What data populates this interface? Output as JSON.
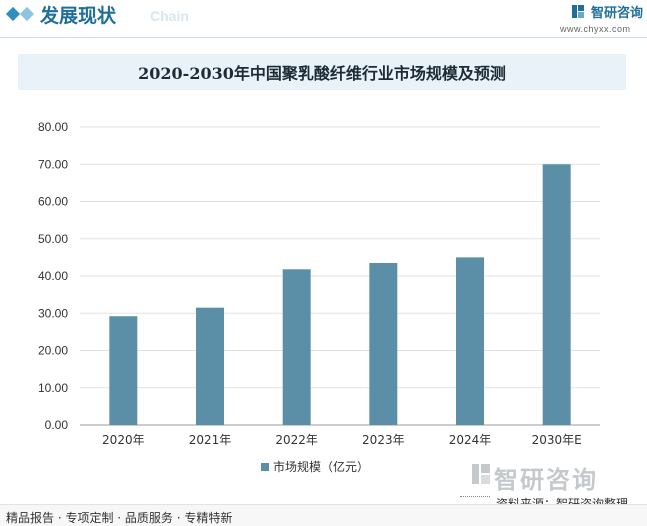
{
  "header": {
    "section_title": "发展现状",
    "section_sub": "Chain",
    "brand_name": "智研咨询",
    "brand_url": "www.chyxx.com"
  },
  "colors": {
    "accent": "#1f6f9a",
    "bar": "#5b8fa8",
    "title_band": "#e8f2f8"
  },
  "chart_data": {
    "type": "bar",
    "title": "2020-2030年中国聚乳酸纤维行业市场规模及预测",
    "categories": [
      "2020年",
      "2021年",
      "2022年",
      "2023年",
      "2024年",
      "2030年E"
    ],
    "series": [
      {
        "name": "市场规模（亿元）",
        "values": [
          29.2,
          31.5,
          41.8,
          43.5,
          45.0,
          70.0
        ]
      }
    ],
    "ylim": [
      0,
      80
    ],
    "yticks": [
      "0.00",
      "10.00",
      "20.00",
      "30.00",
      "40.00",
      "50.00",
      "60.00",
      "70.00",
      "80.00"
    ],
    "grid": true,
    "legend_position": "bottom"
  },
  "watermark": {
    "text": "智研咨询"
  },
  "source": "资料来源：智研咨询整理",
  "footer": {
    "text": "精品报告 · 专项定制 · 品质服务 · 专精特新"
  }
}
